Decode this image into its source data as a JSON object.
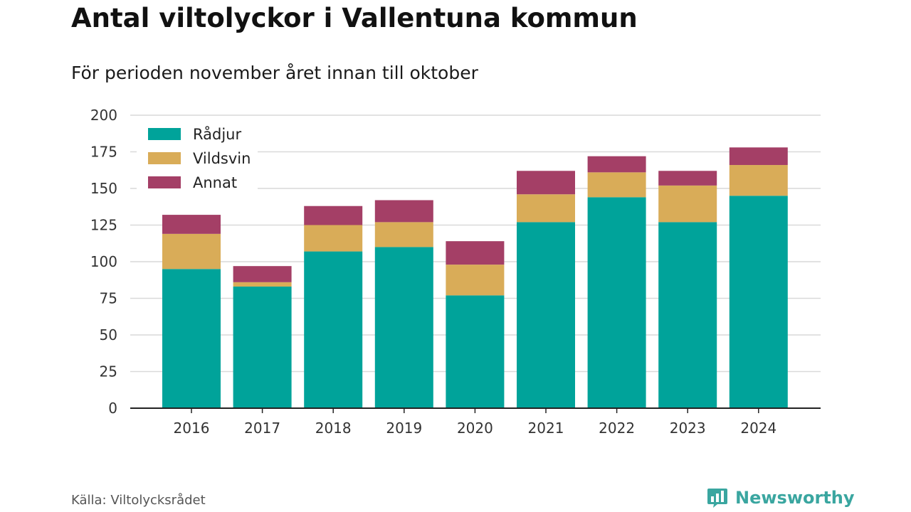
{
  "title": "Antal viltolyckor i Vallentuna kommun",
  "subtitle": "För perioden november året innan till oktober",
  "source": "Källa: Viltolycksrådet",
  "brand": "Newsworthy",
  "colors": {
    "radjur": "#00a39a",
    "vildsvin": "#d9ac58",
    "annat": "#a43f66",
    "brand": "#3aa6a0"
  },
  "chart_data": {
    "type": "bar",
    "stacked": true,
    "title": "Antal viltolyckor i Vallentuna kommun",
    "subtitle": "För perioden november året innan till oktober",
    "categories": [
      "2016",
      "2017",
      "2018",
      "2019",
      "2020",
      "2021",
      "2022",
      "2023",
      "2024"
    ],
    "series": [
      {
        "name": "Rådjur",
        "color": "#00a39a",
        "values": [
          95,
          83,
          107,
          110,
          77,
          127,
          144,
          127,
          145
        ]
      },
      {
        "name": "Vildsvin",
        "color": "#d9ac58",
        "values": [
          24,
          3,
          18,
          17,
          21,
          19,
          17,
          25,
          21
        ]
      },
      {
        "name": "Annat",
        "color": "#a43f66",
        "values": [
          13,
          11,
          13,
          15,
          16,
          16,
          11,
          10,
          12
        ]
      }
    ],
    "ylim": [
      0,
      200
    ],
    "yticks": [
      "0",
      "25",
      "50",
      "75",
      "100",
      "125",
      "150",
      "175",
      "200"
    ],
    "grid": true,
    "legend": "top-left"
  }
}
